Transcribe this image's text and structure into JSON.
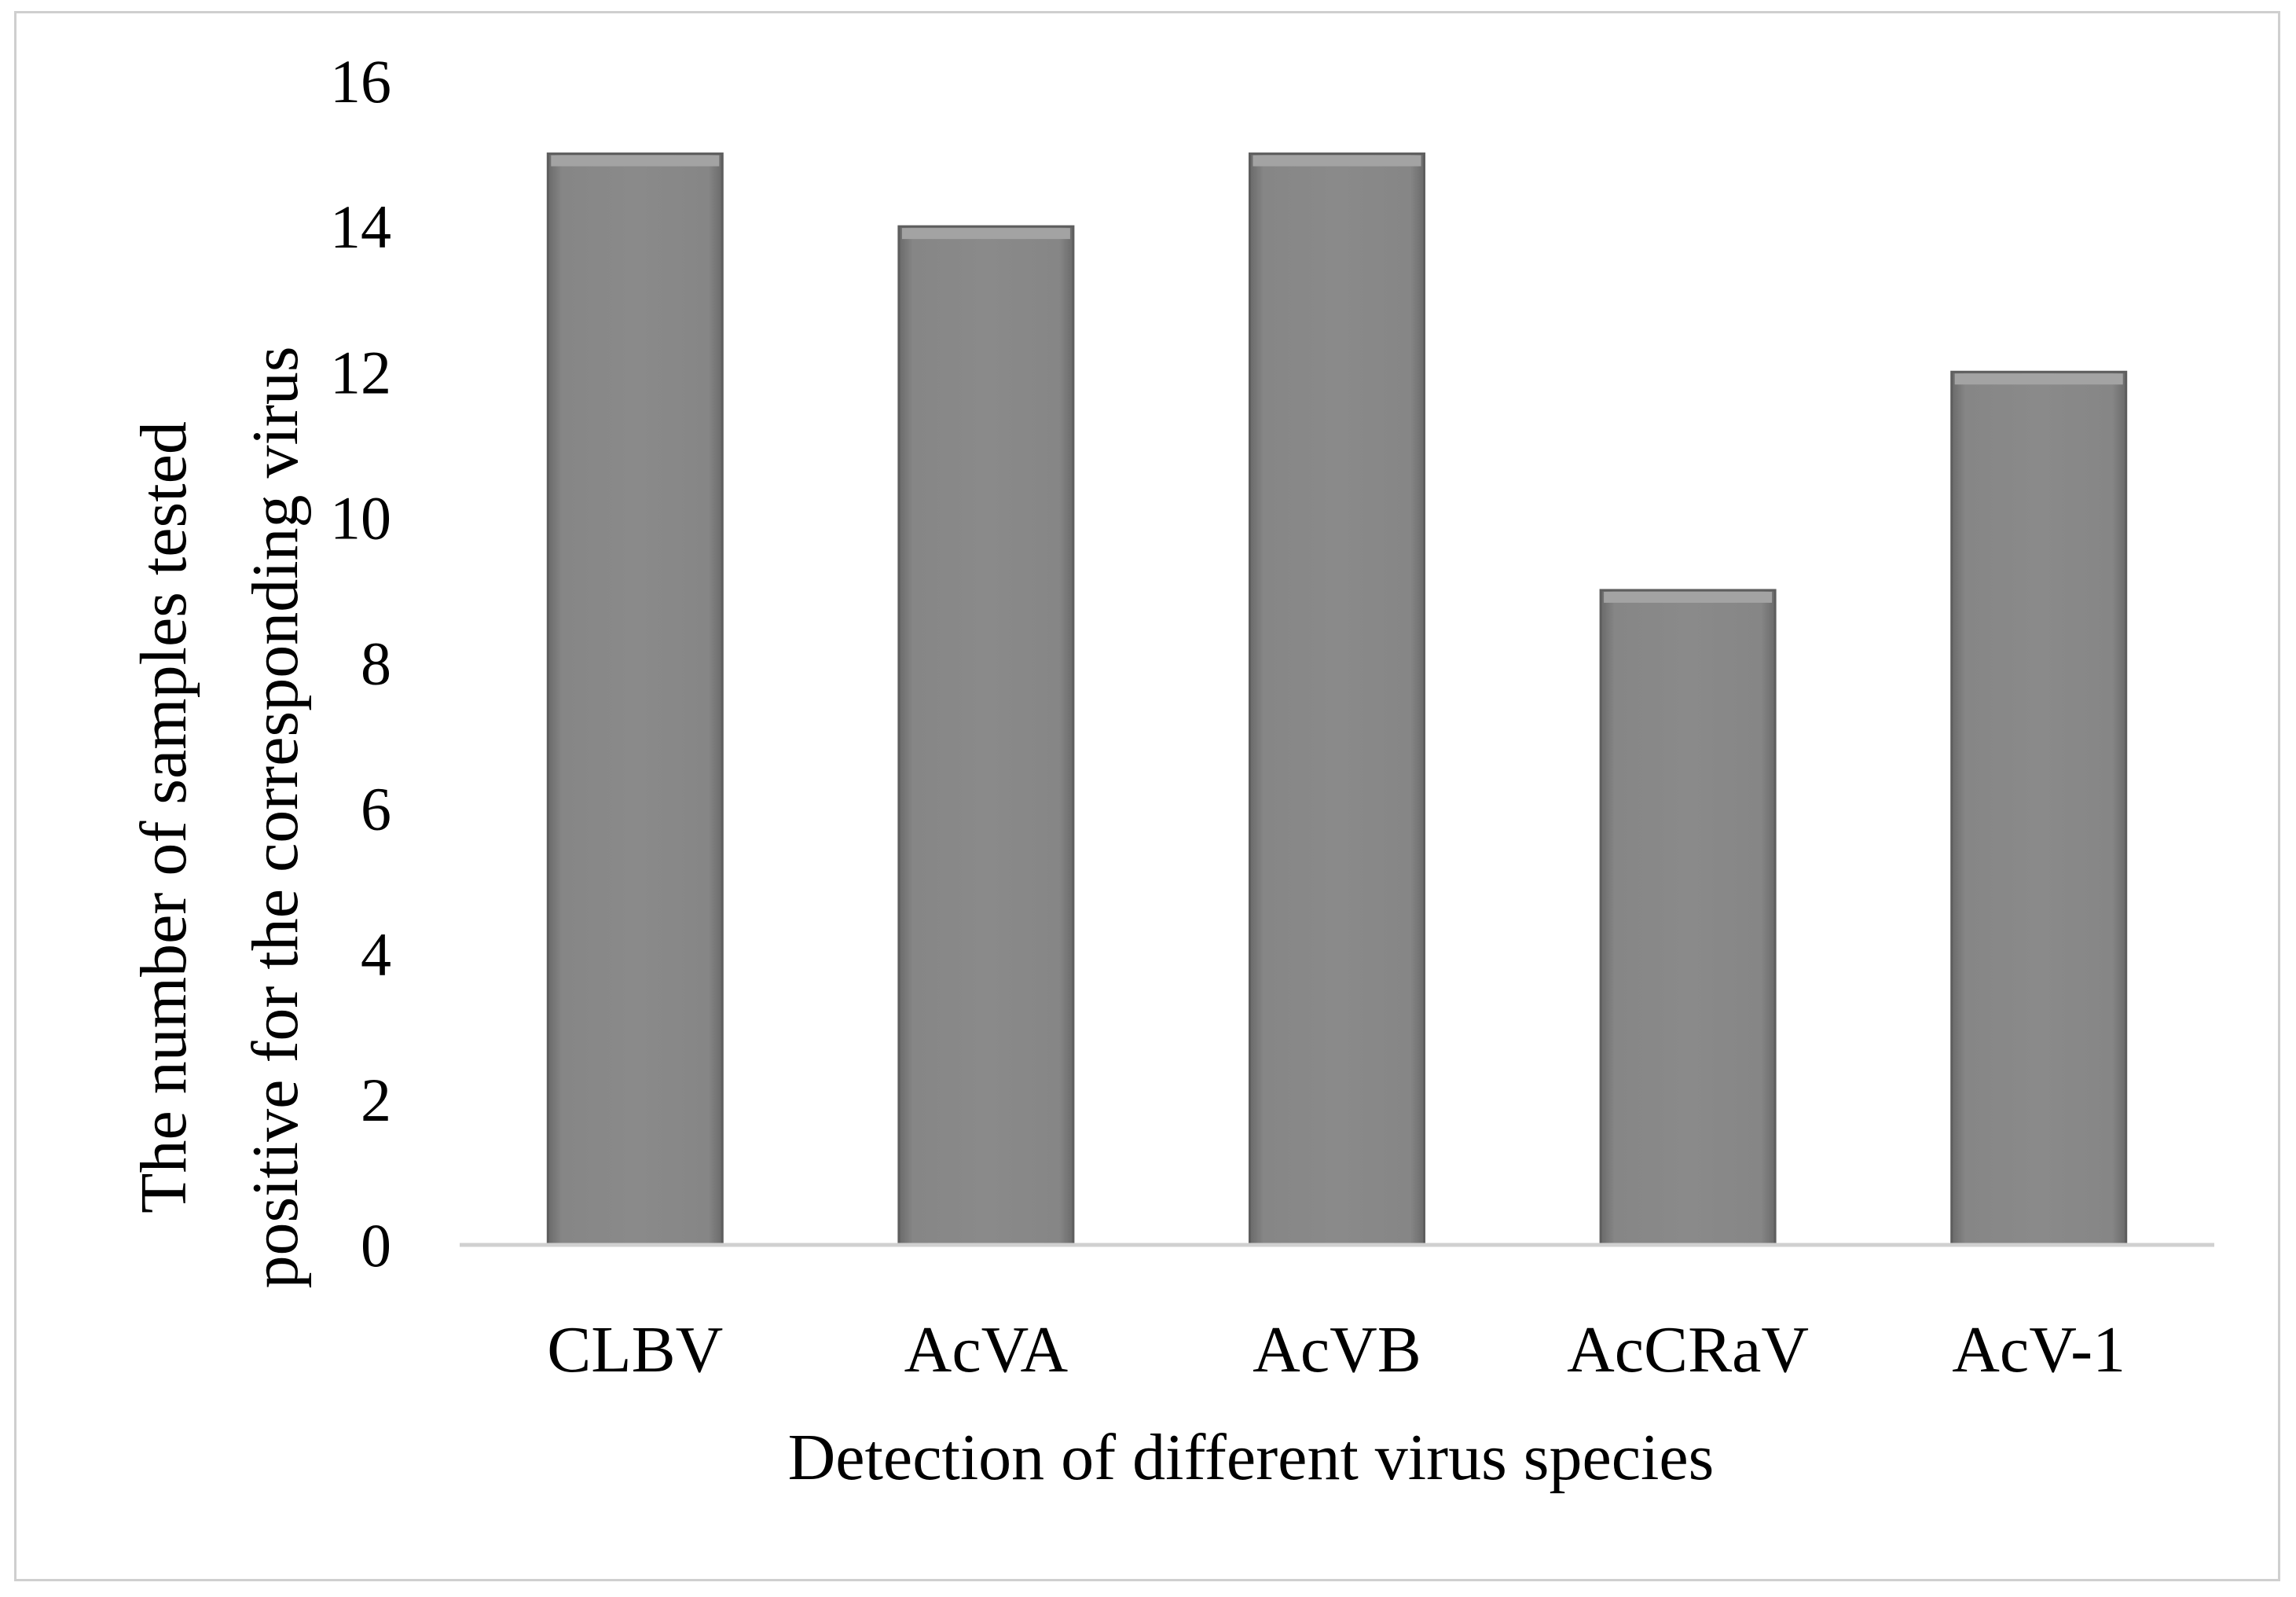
{
  "chart_data": {
    "type": "bar",
    "title": "",
    "categories": [
      "CLBV",
      "AcVA",
      "AcVB",
      "AcCRaV",
      "AcV-1"
    ],
    "values": [
      15,
      14,
      15,
      9,
      12
    ],
    "xlabel": "Detection of different virus species",
    "ylabel_lines": [
      "The number of samples tested",
      "positive for the corresponding virus"
    ],
    "ylim": [
      0,
      16
    ],
    "yticks": [
      0,
      2,
      4,
      6,
      8,
      10,
      12,
      14,
      16
    ],
    "grid": false,
    "legend": "none",
    "colors": {
      "bar_fill": "#838383",
      "bar_highlight": "#a3a3a3",
      "bar_edge": "#5e5e5e",
      "axis_line": "#d0d0d0",
      "frame": "#cfcfcf"
    }
  }
}
